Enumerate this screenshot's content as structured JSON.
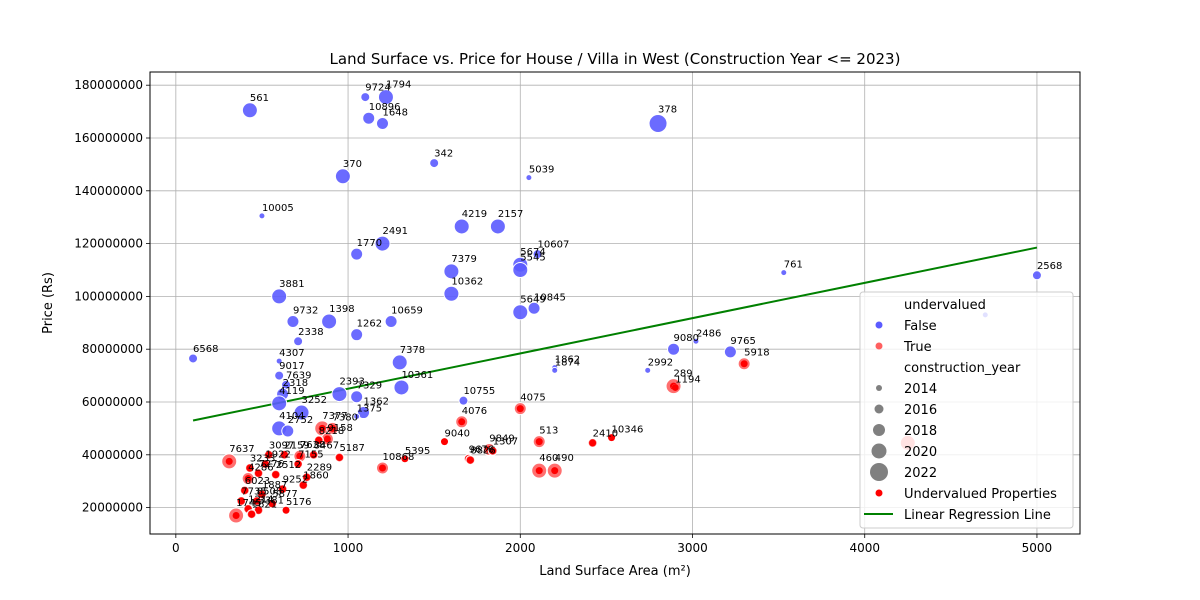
{
  "chart_data": {
    "type": "scatter",
    "title": "Land Surface vs. Price for House / Villa in West (Construction Year <= 2023)",
    "xlabel": "Land Surface Area (m²)",
    "ylabel": "Price (Rs)",
    "xlim": [
      -150,
      5250
    ],
    "ylim": [
      10000000,
      185000000
    ],
    "x_ticks": [
      0,
      1000,
      2000,
      3000,
      4000,
      5000
    ],
    "y_ticks": [
      20000000,
      40000000,
      60000000,
      80000000,
      100000000,
      120000000,
      140000000,
      160000000,
      180000000
    ],
    "grid": true,
    "legend_position": "right",
    "colors": {
      "false": "#5b5bff",
      "true": "#ff5f5f",
      "undervalued_highlight": "#ff0000",
      "regression": "#008000"
    },
    "legend": {
      "hue_title": "undervalued",
      "hue_entries": [
        "False",
        "True"
      ],
      "size_title": "construction_year",
      "size_entries": [
        "2014",
        "2016",
        "2018",
        "2020",
        "2022"
      ],
      "extra_entries": [
        "Undervalued Properties",
        "Linear Regression Line"
      ]
    },
    "regression_line": {
      "x": [
        100,
        5000
      ],
      "y": [
        53000000,
        118500000
      ]
    },
    "points_false": [
      {
        "label": "9724",
        "x": 1100,
        "y": 175500000,
        "year": 2016
      },
      {
        "label": "1794",
        "x": 1220,
        "y": 175500000,
        "year": 2020
      },
      {
        "label": "561",
        "x": 430,
        "y": 170500000,
        "year": 2020
      },
      {
        "label": "10896",
        "x": 1120,
        "y": 167500000,
        "year": 2018
      },
      {
        "label": "1648",
        "x": 1200,
        "y": 165500000,
        "year": 2018
      },
      {
        "label": "378",
        "x": 2800,
        "y": 165500000,
        "year": 2022
      },
      {
        "label": "342",
        "x": 1500,
        "y": 150500000,
        "year": 2016
      },
      {
        "label": "5039",
        "x": 2050,
        "y": 145000000,
        "year": 2014
      },
      {
        "label": "370",
        "x": 970,
        "y": 145500000,
        "year": 2020
      },
      {
        "label": "10005",
        "x": 500,
        "y": 130500000,
        "year": 2014
      },
      {
        "label": "4219",
        "x": 1660,
        "y": 126500000,
        "year": 2020
      },
      {
        "label": "2157",
        "x": 1870,
        "y": 126500000,
        "year": 2020
      },
      {
        "label": "2491",
        "x": 1200,
        "y": 120000000,
        "year": 2020
      },
      {
        "label": "1770",
        "x": 1050,
        "y": 116000000,
        "year": 2018
      },
      {
        "label": "10607",
        "x": 2100,
        "y": 116000000,
        "year": 2016
      },
      {
        "label": "5674",
        "x": 2000,
        "y": 112000000,
        "year": 2020
      },
      {
        "label": "7379",
        "x": 1600,
        "y": 109500000,
        "year": 2020
      },
      {
        "label": "5545",
        "x": 2000,
        "y": 110000000,
        "year": 2020
      },
      {
        "label": "761",
        "x": 3530,
        "y": 109000000,
        "year": 2014
      },
      {
        "label": "2568",
        "x": 5000,
        "y": 108000000,
        "year": 2016
      },
      {
        "label": "10362",
        "x": 1600,
        "y": 101000000,
        "year": 2020
      },
      {
        "label": "3881",
        "x": 600,
        "y": 100000000,
        "year": 2020
      },
      {
        "label": "10845",
        "x": 2080,
        "y": 95500000,
        "year": 2018
      },
      {
        "label": "5649",
        "x": 2000,
        "y": 94000000,
        "year": 2020
      },
      {
        "label": "9732",
        "x": 680,
        "y": 90500000,
        "year": 2018
      },
      {
        "label": "1398",
        "x": 890,
        "y": 90500000,
        "year": 2020
      },
      {
        "label": "10659",
        "x": 1250,
        "y": 90500000,
        "year": 2018
      },
      {
        "label": "1262",
        "x": 1050,
        "y": 85500000,
        "year": 2018
      },
      {
        "label": "2338",
        "x": 710,
        "y": 83000000,
        "year": 2016
      },
      {
        "label": "2486",
        "x": 3020,
        "y": 83000000,
        "year": 2014
      },
      {
        "label": "9080",
        "x": 2890,
        "y": 80000000,
        "year": 2018
      },
      {
        "label": "9765",
        "x": 3220,
        "y": 79000000,
        "year": 2018
      },
      {
        "label": "6568",
        "x": 100,
        "y": 76500000,
        "year": 2016
      },
      {
        "label": "4307",
        "x": 600,
        "y": 75500000,
        "year": 2014
      },
      {
        "label": "7378",
        "x": 1300,
        "y": 75000000,
        "year": 2020
      },
      {
        "label": "1862",
        "x": 2200,
        "y": 73000000,
        "year": 2014
      },
      {
        "label": "1874",
        "x": 2200,
        "y": 72000000,
        "year": 2014
      },
      {
        "label": "2992",
        "x": 2740,
        "y": 72000000,
        "year": 2014
      },
      {
        "label": "9017",
        "x": 600,
        "y": 70000000,
        "year": 2016
      },
      {
        "label": "7639",
        "x": 640,
        "y": 66500000,
        "year": 2016
      },
      {
        "label": "10361",
        "x": 1310,
        "y": 65500000,
        "year": 2020
      },
      {
        "label": "2393",
        "x": 950,
        "y": 63000000,
        "year": 2020
      },
      {
        "label": "2318",
        "x": 620,
        "y": 63000000,
        "year": 2018
      },
      {
        "label": "7329",
        "x": 1050,
        "y": 62000000,
        "year": 2018
      },
      {
        "label": "10755",
        "x": 1670,
        "y": 60500000,
        "year": 2016
      },
      {
        "label": "4119",
        "x": 600,
        "y": 59500000,
        "year": 2020
      },
      {
        "label": "3252",
        "x": 730,
        "y": 56000000,
        "year": 2020
      },
      {
        "label": "1362",
        "x": 1090,
        "y": 56000000,
        "year": 2018
      },
      {
        "label": "1375",
        "x": 1050,
        "y": 54500000,
        "year": 2014
      },
      {
        "label": "4104",
        "x": 600,
        "y": 50000000,
        "year": 2020
      },
      {
        "label": "2752",
        "x": 650,
        "y": 49000000,
        "year": 2018
      }
    ],
    "points_true": [
      {
        "label": "5918",
        "x": 3300,
        "y": 74500000,
        "year": 2018
      },
      {
        "label": "289",
        "x": 2890,
        "y": 66000000,
        "year": 2020
      },
      {
        "label": "1194",
        "x": 2900,
        "y": 65500000,
        "year": 2014
      },
      {
        "label": "4075",
        "x": 2000,
        "y": 57500000,
        "year": 2018
      },
      {
        "label": "4076",
        "x": 1660,
        "y": 52500000,
        "year": 2018
      },
      {
        "label": "7377",
        "x": 850,
        "y": 50000000,
        "year": 2020
      },
      {
        "label": "7380",
        "x": 910,
        "y": 50000000,
        "year": 2018
      },
      {
        "label": "9158",
        "x": 880,
        "y": 46000000,
        "year": 2018
      },
      {
        "label": "8218",
        "x": 830,
        "y": 45500000,
        "year": 2016
      },
      {
        "label": "9040",
        "x": 1560,
        "y": 45000000,
        "year": 2014
      },
      {
        "label": "513",
        "x": 2110,
        "y": 45000000,
        "year": 2018
      },
      {
        "label": "2410",
        "x": 2420,
        "y": 44500000,
        "year": 2016
      },
      {
        "label": "10346",
        "x": 2530,
        "y": 46500000,
        "year": 2014
      },
      {
        "label": "9849",
        "x": 1820,
        "y": 42000000,
        "year": 2018
      },
      {
        "label": "1307",
        "x": 1840,
        "y": 41500000,
        "year": 2016
      },
      {
        "label": "3097",
        "x": 540,
        "y": 40000000,
        "year": 2016
      },
      {
        "label": "2159",
        "x": 630,
        "y": 40000000,
        "year": 2016
      },
      {
        "label": "7638",
        "x": 720,
        "y": 39500000,
        "year": 2018
      },
      {
        "label": "8467",
        "x": 800,
        "y": 40000000,
        "year": 2016
      },
      {
        "label": "5187",
        "x": 950,
        "y": 39000000,
        "year": 2016
      },
      {
        "label": "5395",
        "x": 1330,
        "y": 38500000,
        "year": 2014
      },
      {
        "label": "9676",
        "x": 1700,
        "y": 38500000,
        "year": 2016
      },
      {
        "label": "8826",
        "x": 1710,
        "y": 38000000,
        "year": 2016
      },
      {
        "label": "7637",
        "x": 310,
        "y": 37500000,
        "year": 2020
      },
      {
        "label": "1922",
        "x": 520,
        "y": 36500000,
        "year": 2016
      },
      {
        "label": "3233",
        "x": 430,
        "y": 35000000,
        "year": 2016
      },
      {
        "label": "7155",
        "x": 710,
        "y": 36500000,
        "year": 2016
      },
      {
        "label": "10868",
        "x": 1200,
        "y": 35000000,
        "year": 2018
      },
      {
        "label": "460",
        "x": 2110,
        "y": 34000000,
        "year": 2020
      },
      {
        "label": "490",
        "x": 2200,
        "y": 34000000,
        "year": 2020
      },
      {
        "label": "7276",
        "x": 480,
        "y": 33000000,
        "year": 2016
      },
      {
        "label": "2512",
        "x": 580,
        "y": 32500000,
        "year": 2016
      },
      {
        "label": "2289",
        "x": 760,
        "y": 31500000,
        "year": 2016
      },
      {
        "label": "4286",
        "x": 420,
        "y": 31000000,
        "year": 2018
      },
      {
        "label": "1860",
        "x": 740,
        "y": 28500000,
        "year": 2016
      },
      {
        "label": "6023",
        "x": 400,
        "y": 26500000,
        "year": 2016
      },
      {
        "label": "9252",
        "x": 620,
        "y": 27000000,
        "year": 2016
      },
      {
        "label": "1887",
        "x": 500,
        "y": 25000000,
        "year": 2016
      },
      {
        "label": "7735",
        "x": 380,
        "y": 22500000,
        "year": 2016
      },
      {
        "label": "8508",
        "x": 470,
        "y": 22500000,
        "year": 2016
      },
      {
        "label": "5877",
        "x": 560,
        "y": 21500000,
        "year": 2016
      },
      {
        "label": "1214",
        "x": 420,
        "y": 19500000,
        "year": 2016
      },
      {
        "label": "3381",
        "x": 480,
        "y": 19000000,
        "year": 2016
      },
      {
        "label": "5176",
        "x": 640,
        "y": 19000000,
        "year": 2014
      },
      {
        "label": "1745",
        "x": 350,
        "y": 17000000,
        "year": 2020
      },
      {
        "label": "1621",
        "x": 440,
        "y": 17500000,
        "year": 2016
      }
    ],
    "points_unlabeled": [
      {
        "x": 4250,
        "y": 44500000,
        "year": 2020,
        "group": "true"
      },
      {
        "x": 4700,
        "y": 93000000,
        "year": 2014,
        "group": "false"
      }
    ]
  }
}
